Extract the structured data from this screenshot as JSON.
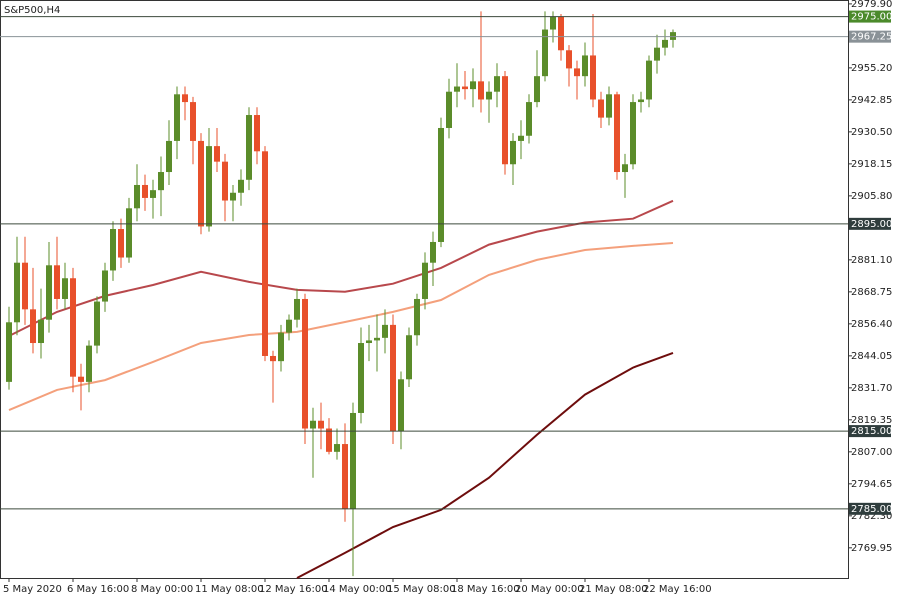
{
  "chart_data": {
    "type": "candlestick",
    "title": "S&P500,H4",
    "categories": [
      "5 May 2020",
      null,
      null,
      null,
      null,
      null,
      null,
      null,
      "6 May 16:00",
      null,
      null,
      null,
      null,
      null,
      null,
      null,
      "8 May 00:00",
      null,
      null,
      null,
      null,
      null,
      null,
      null,
      "11 May 08:00",
      null,
      null,
      null,
      null,
      null,
      null,
      null,
      "12 May 16:00",
      null,
      null,
      null,
      null,
      null,
      null,
      null,
      "14 May 00:00",
      null,
      null,
      null,
      null,
      null,
      null,
      null,
      "15 May 08:00",
      null,
      null,
      null,
      null,
      null,
      null,
      null,
      "18 May 16:00",
      null,
      null,
      null,
      null,
      null,
      null,
      null,
      "20 May 00:00",
      null,
      null,
      null,
      null,
      null,
      null,
      null,
      "21 May 08:00",
      null,
      null,
      null,
      null,
      null,
      null,
      null,
      "22 May 16:00",
      null,
      null,
      null
    ],
    "open": [
      2834,
      2857,
      2880,
      2862,
      2849,
      2858,
      2879,
      2866,
      2874,
      2836,
      2834,
      2848,
      2865,
      2877,
      2893,
      2882,
      2901,
      2910,
      2905,
      2908,
      2915,
      2927,
      2945,
      2942,
      2927,
      2894,
      2925,
      2919,
      2904,
      2907,
      2912,
      2937,
      2923,
      2844,
      2842,
      2853,
      2858,
      2866,
      2816,
      2819,
      2816,
      2807,
      2810,
      2785,
      2822,
      2849,
      2850,
      2851,
      2856,
      2815,
      2835,
      2852,
      2866,
      2880,
      2888,
      2932,
      2946,
      2948,
      2947,
      2950,
      2943,
      2946,
      2952,
      2918,
      2927,
      2929,
      2942,
      2952,
      2970,
      2975,
      2962,
      2955,
      2952,
      2960,
      2943,
      2936,
      2945,
      2915,
      2918,
      2942,
      2943,
      2958,
      2963,
      2966
    ],
    "high": [
      2863,
      2890,
      2890,
      2878,
      2870,
      2888,
      2890,
      2880,
      2878,
      2841,
      2850,
      2867,
      2880,
      2896,
      2897,
      2905,
      2918,
      2914,
      2912,
      2921,
      2935,
      2948,
      2948,
      2944,
      2930,
      2932,
      2932,
      2922,
      2910,
      2916,
      2940,
      2940,
      2925,
      2846,
      2856,
      2860,
      2870,
      2868,
      2824,
      2826,
      2820,
      2816,
      2818,
      2826,
      2855,
      2856,
      2860,
      2862,
      2860,
      2838,
      2855,
      2868,
      2884,
      2892,
      2936,
      2951,
      2957,
      2954,
      2955,
      2977,
      2950,
      2957,
      2954,
      2930,
      2935,
      2945,
      2962,
      2977,
      2977,
      2976,
      2964,
      2958,
      2965,
      2976,
      2946,
      2948,
      2946,
      2922,
      2945,
      2946,
      2960,
      2968,
      2970,
      2970
    ],
    "low": [
      2831,
      2852,
      2856,
      2845,
      2843,
      2853,
      2862,
      2862,
      2830,
      2823,
      2830,
      2845,
      2861,
      2873,
      2878,
      2880,
      2896,
      2900,
      2897,
      2898,
      2910,
      2920,
      2935,
      2918,
      2891,
      2892,
      2915,
      2896,
      2896,
      2902,
      2908,
      2918,
      2842,
      2826,
      2838,
      2850,
      2855,
      2810,
      2797,
      2808,
      2806,
      2804,
      2780,
      2759,
      2818,
      2842,
      2838,
      2845,
      2810,
      2808,
      2832,
      2848,
      2862,
      2871,
      2886,
      2928,
      2940,
      2943,
      2940,
      2938,
      2934,
      2940,
      2914,
      2910,
      2920,
      2926,
      2940,
      2950,
      2965,
      2958,
      2948,
      2943,
      2948,
      2940,
      2932,
      2933,
      2912,
      2905,
      2916,
      2938,
      2940,
      2953,
      2960,
      2963
    ],
    "close": [
      2857,
      2880,
      2862,
      2849,
      2858,
      2879,
      2866,
      2874,
      2836,
      2834,
      2848,
      2865,
      2877,
      2893,
      2882,
      2901,
      2910,
      2905,
      2908,
      2915,
      2927,
      2945,
      2942,
      2927,
      2894,
      2925,
      2919,
      2904,
      2907,
      2912,
      2937,
      2923,
      2844,
      2842,
      2853,
      2858,
      2866,
      2816,
      2819,
      2816,
      2807,
      2810,
      2785,
      2822,
      2849,
      2850,
      2851,
      2856,
      2815,
      2835,
      2852,
      2866,
      2880,
      2888,
      2932,
      2946,
      2948,
      2947,
      2950,
      2943,
      2946,
      2952,
      2918,
      2927,
      2929,
      2942,
      2952,
      2970,
      2975,
      2962,
      2955,
      2952,
      2960,
      2943,
      2936,
      2945,
      2915,
      2918,
      2942,
      2943,
      2958,
      2963,
      2966,
      2969
    ],
    "up_color": "#5b8c2a",
    "down_color": "#e8502b",
    "lines": [
      {
        "color": "#b8484c",
        "x": [
          0,
          6,
          12,
          18,
          24,
          30,
          36,
          42,
          48,
          54,
          60,
          66,
          72,
          78,
          83
        ],
        "values": [
          2851.7,
          2861.0,
          2867.2,
          2871.4,
          2876.5,
          2872.6,
          2869.5,
          2868.8,
          2871.9,
          2878.0,
          2887.0,
          2892.0,
          2895.5,
          2897.0,
          2903.9
        ]
      },
      {
        "color": "#f4a07c",
        "x": [
          0,
          6,
          12,
          18,
          24,
          30,
          36,
          42,
          48,
          54,
          60,
          66,
          72,
          78,
          83
        ],
        "values": [
          2823.1,
          2830.9,
          2834.7,
          2841.7,
          2849.0,
          2852.1,
          2853.3,
          2857.1,
          2861.0,
          2865.6,
          2875.3,
          2881.1,
          2884.9,
          2886.5,
          2887.6
        ]
      },
      {
        "color": "#6e0d0d",
        "x": [
          36,
          42,
          48,
          54,
          60,
          66,
          72,
          78,
          83
        ],
        "values": [
          2758.3,
          2768.0,
          2778.0,
          2784.6,
          2797.0,
          2813.6,
          2829.1,
          2839.5,
          2845.2
        ]
      }
    ],
    "levels": [
      {
        "value": 2975,
        "label": "2975.00",
        "color": "#4b8a2b"
      },
      {
        "value": 2967.25,
        "label": "2967.25",
        "color": "#8a9297"
      },
      {
        "value": 2895,
        "label": "2895.00",
        "color": "#2f3d3d"
      },
      {
        "value": 2815,
        "label": "2815.00",
        "color": "#2f3d3d"
      },
      {
        "value": 2785,
        "label": "2785.00",
        "color": "#2f3d3d"
      }
    ],
    "xlim": [
      -1.125,
      104.875
    ],
    "ylim": [
      2758.3,
      2981.4
    ],
    "yticks": [
      {
        "value": 2979.9,
        "label": "2979.90"
      },
      {
        "value": 2955.2,
        "label": "2955.20"
      },
      2942.85,
      {
        "value": 2930.5,
        "label": "2930.50"
      },
      2918.15,
      {
        "value": 2905.8,
        "label": "2905.80"
      },
      {
        "value": 2881.1,
        "label": "2881.10"
      },
      2868.75,
      {
        "value": 2856.4,
        "label": "2856.40"
      },
      2844.05,
      {
        "value": 2831.7,
        "label": "2831.70"
      },
      2819.35,
      {
        "value": 2807,
        "label": "2807.00"
      },
      2794.65,
      {
        "value": 2782.3,
        "label": "2782.30"
      },
      2769.95
    ]
  }
}
